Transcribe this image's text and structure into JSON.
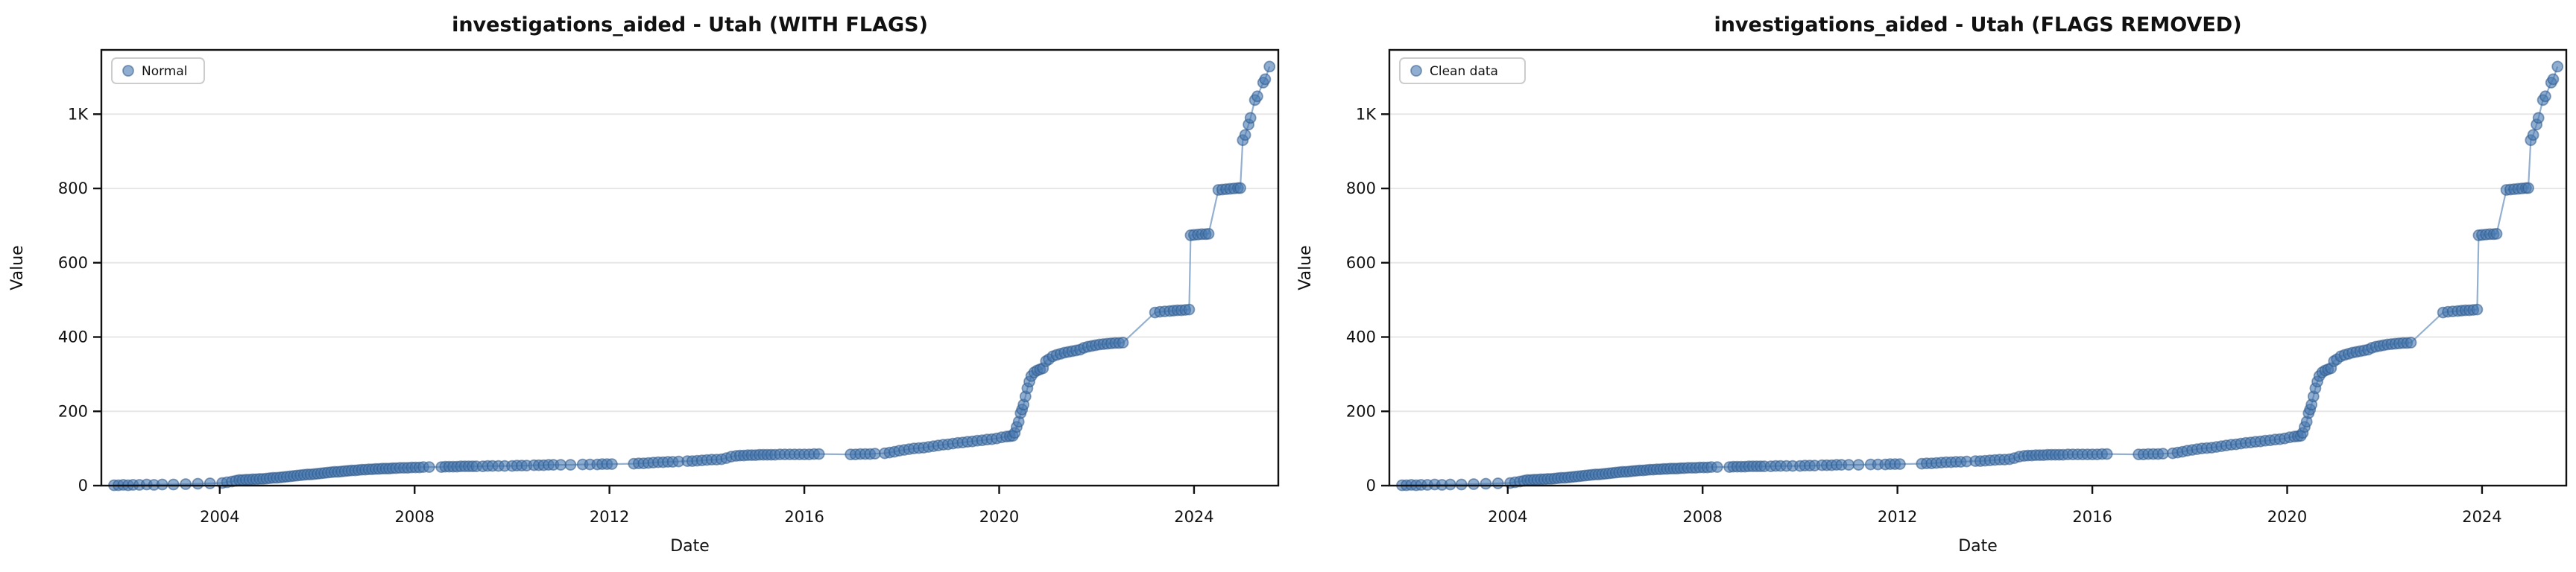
{
  "figure": {
    "background": "#ffffff",
    "panels": [
      "left",
      "right"
    ]
  },
  "colors": {
    "marker_fill": "rgba(70,120,176,0.60)",
    "marker_edge": "rgba(47,87,134,0.55)",
    "line": "rgba(112,150,192,0.75)",
    "grid": "#e7e7e7",
    "spine": "#111111",
    "text": "#111111",
    "legend_border": "#cccccc",
    "legend_bg": "rgba(255,255,255,0.9)"
  },
  "chart_data": {
    "type": "scatter",
    "xlabel": "Date",
    "ylabel": "Value",
    "xlim": [
      2001.57,
      2025.73
    ],
    "ylim": [
      0,
      1173
    ],
    "grid": "horizontal-only",
    "legend_position": "upper-left",
    "xticks": {
      "values": [
        2004,
        2008,
        2012,
        2016,
        2020,
        2024
      ],
      "labels": [
        "2004",
        "2008",
        "2012",
        "2016",
        "2020",
        "2024"
      ]
    },
    "yticks": {
      "values": [
        0,
        200,
        400,
        600,
        800,
        1000
      ],
      "labels": [
        "0",
        "200",
        "400",
        "600",
        "800",
        "1K"
      ]
    },
    "charts": [
      {
        "id": "with-flags",
        "title": "investigations_aided - Utah (WITH FLAGS)",
        "legend_label": "Normal"
      },
      {
        "id": "flags-removed",
        "title": "investigations_aided - Utah (FLAGS REMOVED)",
        "legend_label": "Clean data"
      }
    ],
    "series_points": [
      [
        2001.83,
        1
      ],
      [
        2001.92,
        1
      ],
      [
        2002.02,
        2
      ],
      [
        2002.12,
        1
      ],
      [
        2002.22,
        2
      ],
      [
        2002.35,
        2
      ],
      [
        2002.5,
        3
      ],
      [
        2002.65,
        2
      ],
      [
        2002.82,
        3
      ],
      [
        2003.05,
        3
      ],
      [
        2003.3,
        4
      ],
      [
        2003.55,
        5
      ],
      [
        2003.8,
        6
      ],
      [
        2004.05,
        7
      ],
      [
        2004.15,
        9
      ],
      [
        2004.25,
        11
      ],
      [
        2004.33,
        13
      ],
      [
        2004.4,
        15
      ],
      [
        2004.47,
        15
      ],
      [
        2004.54,
        16
      ],
      [
        2004.61,
        16
      ],
      [
        2004.68,
        17
      ],
      [
        2004.75,
        17
      ],
      [
        2004.82,
        18
      ],
      [
        2004.89,
        18
      ],
      [
        2004.96,
        19
      ],
      [
        2005.03,
        20
      ],
      [
        2005.1,
        21
      ],
      [
        2005.17,
        21
      ],
      [
        2005.24,
        22
      ],
      [
        2005.31,
        23
      ],
      [
        2005.38,
        24
      ],
      [
        2005.45,
        25
      ],
      [
        2005.52,
        26
      ],
      [
        2005.59,
        27
      ],
      [
        2005.66,
        28
      ],
      [
        2005.73,
        29
      ],
      [
        2005.8,
        30
      ],
      [
        2005.87,
        30
      ],
      [
        2005.94,
        31
      ],
      [
        2006.01,
        32
      ],
      [
        2006.08,
        33
      ],
      [
        2006.15,
        34
      ],
      [
        2006.22,
        35
      ],
      [
        2006.29,
        36
      ],
      [
        2006.36,
        37
      ],
      [
        2006.43,
        37
      ],
      [
        2006.5,
        38
      ],
      [
        2006.57,
        39
      ],
      [
        2006.64,
        40
      ],
      [
        2006.71,
        41
      ],
      [
        2006.78,
        41
      ],
      [
        2006.85,
        42
      ],
      [
        2006.92,
        43
      ],
      [
        2006.99,
        43
      ],
      [
        2007.06,
        44
      ],
      [
        2007.13,
        44
      ],
      [
        2007.2,
        45
      ],
      [
        2007.27,
        45
      ],
      [
        2007.34,
        46
      ],
      [
        2007.41,
        46
      ],
      [
        2007.48,
        46
      ],
      [
        2007.55,
        47
      ],
      [
        2007.62,
        47
      ],
      [
        2007.7,
        48
      ],
      [
        2007.78,
        48
      ],
      [
        2007.86,
        48
      ],
      [
        2007.94,
        49
      ],
      [
        2008.02,
        49
      ],
      [
        2008.1,
        49
      ],
      [
        2008.18,
        50
      ],
      [
        2008.3,
        50
      ],
      [
        2008.55,
        50
      ],
      [
        2008.63,
        51
      ],
      [
        2008.71,
        51
      ],
      [
        2008.79,
        51
      ],
      [
        2008.87,
        51
      ],
      [
        2008.95,
        52
      ],
      [
        2009.03,
        52
      ],
      [
        2009.11,
        52
      ],
      [
        2009.19,
        52
      ],
      [
        2009.27,
        52
      ],
      [
        2009.4,
        52
      ],
      [
        2009.5,
        53
      ],
      [
        2009.6,
        53
      ],
      [
        2009.72,
        53
      ],
      [
        2009.85,
        53
      ],
      [
        2010.0,
        53
      ],
      [
        2010.1,
        54
      ],
      [
        2010.2,
        54
      ],
      [
        2010.3,
        54
      ],
      [
        2010.45,
        55
      ],
      [
        2010.55,
        55
      ],
      [
        2010.65,
        55
      ],
      [
        2010.75,
        56
      ],
      [
        2010.85,
        56
      ],
      [
        2011.0,
        56
      ],
      [
        2011.2,
        56
      ],
      [
        2011.45,
        57
      ],
      [
        2011.6,
        57
      ],
      [
        2011.75,
        57
      ],
      [
        2011.85,
        58
      ],
      [
        2011.95,
        58
      ],
      [
        2012.05,
        58
      ],
      [
        2012.5,
        59
      ],
      [
        2012.6,
        60
      ],
      [
        2012.7,
        60
      ],
      [
        2012.8,
        61
      ],
      [
        2012.9,
        62
      ],
      [
        2013.0,
        63
      ],
      [
        2013.1,
        63
      ],
      [
        2013.2,
        64
      ],
      [
        2013.3,
        64
      ],
      [
        2013.42,
        65
      ],
      [
        2013.6,
        66
      ],
      [
        2013.7,
        66
      ],
      [
        2013.8,
        67
      ],
      [
        2013.9,
        68
      ],
      [
        2014.0,
        69
      ],
      [
        2014.1,
        70
      ],
      [
        2014.2,
        70
      ],
      [
        2014.3,
        71
      ],
      [
        2014.4,
        74
      ],
      [
        2014.5,
        78
      ],
      [
        2014.6,
        80
      ],
      [
        2014.68,
        81
      ],
      [
        2014.76,
        81
      ],
      [
        2014.84,
        82
      ],
      [
        2014.92,
        82
      ],
      [
        2015.0,
        82
      ],
      [
        2015.08,
        83
      ],
      [
        2015.16,
        83
      ],
      [
        2015.24,
        83
      ],
      [
        2015.32,
        83
      ],
      [
        2015.4,
        83
      ],
      [
        2015.5,
        84
      ],
      [
        2015.6,
        84
      ],
      [
        2015.7,
        84
      ],
      [
        2015.8,
        84
      ],
      [
        2015.9,
        84
      ],
      [
        2016.0,
        84
      ],
      [
        2016.1,
        84
      ],
      [
        2016.2,
        85
      ],
      [
        2016.3,
        85
      ],
      [
        2016.95,
        84
      ],
      [
        2017.05,
        84
      ],
      [
        2017.15,
        85
      ],
      [
        2017.25,
        85
      ],
      [
        2017.35,
        85
      ],
      [
        2017.45,
        86
      ],
      [
        2017.65,
        87
      ],
      [
        2017.75,
        89
      ],
      [
        2017.85,
        91
      ],
      [
        2017.95,
        94
      ],
      [
        2018.05,
        96
      ],
      [
        2018.15,
        98
      ],
      [
        2018.25,
        100
      ],
      [
        2018.35,
        101
      ],
      [
        2018.45,
        102
      ],
      [
        2018.55,
        104
      ],
      [
        2018.65,
        106
      ],
      [
        2018.75,
        108
      ],
      [
        2018.85,
        110
      ],
      [
        2018.95,
        111
      ],
      [
        2019.05,
        113
      ],
      [
        2019.15,
        115
      ],
      [
        2019.25,
        116
      ],
      [
        2019.35,
        118
      ],
      [
        2019.45,
        119
      ],
      [
        2019.55,
        121
      ],
      [
        2019.65,
        122
      ],
      [
        2019.75,
        124
      ],
      [
        2019.85,
        125
      ],
      [
        2019.95,
        127
      ],
      [
        2020.05,
        130
      ],
      [
        2020.15,
        132
      ],
      [
        2020.22,
        133
      ],
      [
        2020.28,
        134
      ],
      [
        2020.32,
        142
      ],
      [
        2020.36,
        158
      ],
      [
        2020.4,
        172
      ],
      [
        2020.44,
        195
      ],
      [
        2020.47,
        205
      ],
      [
        2020.5,
        218
      ],
      [
        2020.54,
        240
      ],
      [
        2020.58,
        262
      ],
      [
        2020.62,
        280
      ],
      [
        2020.66,
        295
      ],
      [
        2020.72,
        305
      ],
      [
        2020.78,
        310
      ],
      [
        2020.84,
        313
      ],
      [
        2020.9,
        316
      ],
      [
        2020.96,
        335
      ],
      [
        2021.02,
        340
      ],
      [
        2021.1,
        348
      ],
      [
        2021.18,
        352
      ],
      [
        2021.26,
        355
      ],
      [
        2021.34,
        358
      ],
      [
        2021.42,
        360
      ],
      [
        2021.5,
        362
      ],
      [
        2021.58,
        364
      ],
      [
        2021.66,
        366
      ],
      [
        2021.74,
        371
      ],
      [
        2021.82,
        374
      ],
      [
        2021.9,
        376
      ],
      [
        2021.98,
        378
      ],
      [
        2022.06,
        380
      ],
      [
        2022.14,
        381
      ],
      [
        2022.22,
        382
      ],
      [
        2022.3,
        383
      ],
      [
        2022.38,
        384
      ],
      [
        2022.46,
        384
      ],
      [
        2022.54,
        385
      ],
      [
        2023.2,
        466
      ],
      [
        2023.3,
        468
      ],
      [
        2023.4,
        469
      ],
      [
        2023.5,
        470
      ],
      [
        2023.58,
        471
      ],
      [
        2023.66,
        472
      ],
      [
        2023.74,
        472
      ],
      [
        2023.82,
        473
      ],
      [
        2023.9,
        474
      ],
      [
        2023.93,
        674
      ],
      [
        2024.0,
        675
      ],
      [
        2024.08,
        676
      ],
      [
        2024.16,
        677
      ],
      [
        2024.24,
        677
      ],
      [
        2024.3,
        678
      ],
      [
        2024.5,
        796
      ],
      [
        2024.58,
        797
      ],
      [
        2024.66,
        798
      ],
      [
        2024.74,
        799
      ],
      [
        2024.82,
        800
      ],
      [
        2024.9,
        801
      ],
      [
        2024.95,
        801
      ],
      [
        2025.0,
        930
      ],
      [
        2025.05,
        944
      ],
      [
        2025.12,
        972
      ],
      [
        2025.16,
        990
      ],
      [
        2025.25,
        1038
      ],
      [
        2025.3,
        1048
      ],
      [
        2025.42,
        1085
      ],
      [
        2025.46,
        1094
      ],
      [
        2025.55,
        1128
      ]
    ]
  }
}
